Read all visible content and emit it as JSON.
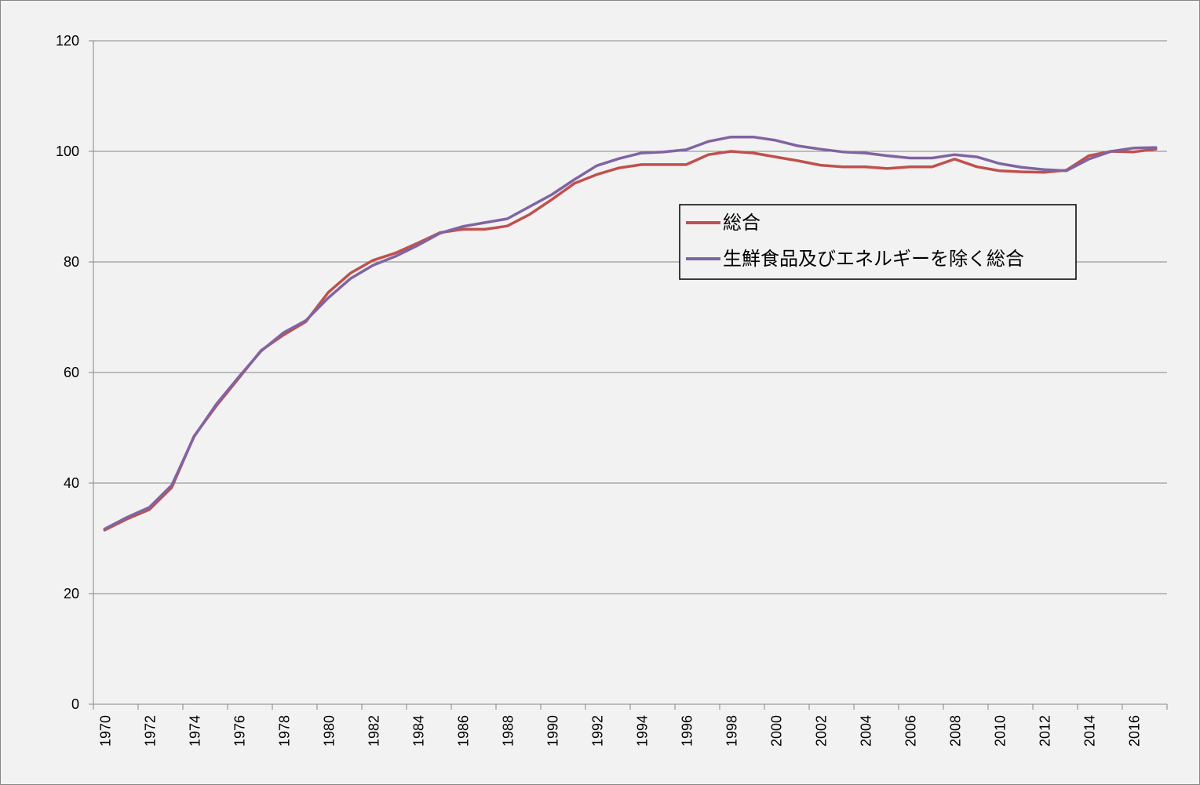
{
  "chart_data": {
    "type": "line",
    "title": "",
    "xlabel": "",
    "ylabel": "",
    "ylim": [
      0,
      120
    ],
    "yticks": [
      0,
      20,
      40,
      60,
      80,
      100,
      120
    ],
    "xlim": [
      1970,
      2017
    ],
    "xtick_labels": [
      "1970",
      "1972",
      "1974",
      "1976",
      "1978",
      "1980",
      "1982",
      "1984",
      "1986",
      "1988",
      "1990",
      "1992",
      "1994",
      "1996",
      "1998",
      "2000",
      "2002",
      "2004",
      "2006",
      "2008",
      "2010",
      "2012",
      "2014",
      "2016"
    ],
    "grid": "horizontal",
    "legend_position": "upper-right",
    "x": [
      1970,
      1971,
      1972,
      1973,
      1974,
      1975,
      1976,
      1977,
      1978,
      1979,
      1980,
      1981,
      1982,
      1983,
      1984,
      1985,
      1986,
      1987,
      1988,
      1989,
      1990,
      1991,
      1992,
      1993,
      1994,
      1995,
      1996,
      1997,
      1998,
      1999,
      2000,
      2001,
      2002,
      2003,
      2004,
      2005,
      2006,
      2007,
      2008,
      2009,
      2010,
      2011,
      2012,
      2013,
      2014,
      2015,
      2016,
      2017
    ],
    "series": [
      {
        "name": "総合",
        "color": "#c0504d",
        "values": [
          31.5,
          33.5,
          35.2,
          39.2,
          48.5,
          54.0,
          59.0,
          64.0,
          66.8,
          69.2,
          74.5,
          78.0,
          80.3,
          81.6,
          83.4,
          85.3,
          85.9,
          85.9,
          86.5,
          88.6,
          91.3,
          94.2,
          95.8,
          97.0,
          97.6,
          97.6,
          97.6,
          99.4,
          100.0,
          99.7,
          99.0,
          98.3,
          97.5,
          97.2,
          97.2,
          96.9,
          97.2,
          97.2,
          98.6,
          97.2,
          96.5,
          96.3,
          96.2,
          96.6,
          99.2,
          100.0,
          99.9,
          100.4
        ]
      },
      {
        "name": "生鮮食品及びエネルギーを除く総合",
        "color": "#8064a2",
        "values": [
          31.7,
          33.8,
          35.6,
          39.6,
          48.4,
          54.3,
          59.2,
          63.9,
          67.2,
          69.4,
          73.5,
          77.0,
          79.4,
          81.0,
          83.0,
          85.2,
          86.4,
          87.1,
          87.8,
          90.0,
          92.2,
          94.9,
          97.4,
          98.7,
          99.7,
          99.9,
          100.3,
          101.8,
          102.6,
          102.6,
          102.0,
          101.0,
          100.4,
          99.9,
          99.7,
          99.2,
          98.8,
          98.8,
          99.4,
          99.0,
          97.8,
          97.1,
          96.7,
          96.5,
          98.6,
          100.0,
          100.6,
          100.7
        ]
      }
    ]
  }
}
